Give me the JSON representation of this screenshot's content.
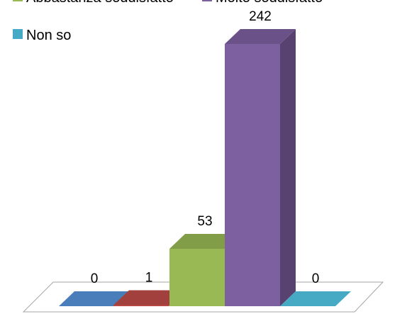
{
  "chart_data": {
    "type": "bar",
    "three_d": true,
    "categories": [
      "",
      "",
      "Abbastanza soddisfatto",
      "Molto soddisfatto",
      "Non so"
    ],
    "values": [
      0,
      1,
      53,
      242,
      0
    ],
    "colors": [
      "#4a7ebb",
      "#be4b48",
      "#98b954",
      "#7d60a0",
      "#46aac5"
    ],
    "legend": {
      "placement": "top-left",
      "entries": [
        {
          "name": "Abbastanza soddisfatto",
          "color": "#98b954"
        },
        {
          "name": "Molto soddisfatto",
          "color": "#7d60a0"
        },
        {
          "name": "Non so",
          "color": "#46aac5"
        }
      ]
    },
    "data_labels": [
      "0",
      "1",
      "53",
      "242",
      "0"
    ],
    "grid": false,
    "title": "",
    "xlabel": "",
    "ylabel": ""
  }
}
